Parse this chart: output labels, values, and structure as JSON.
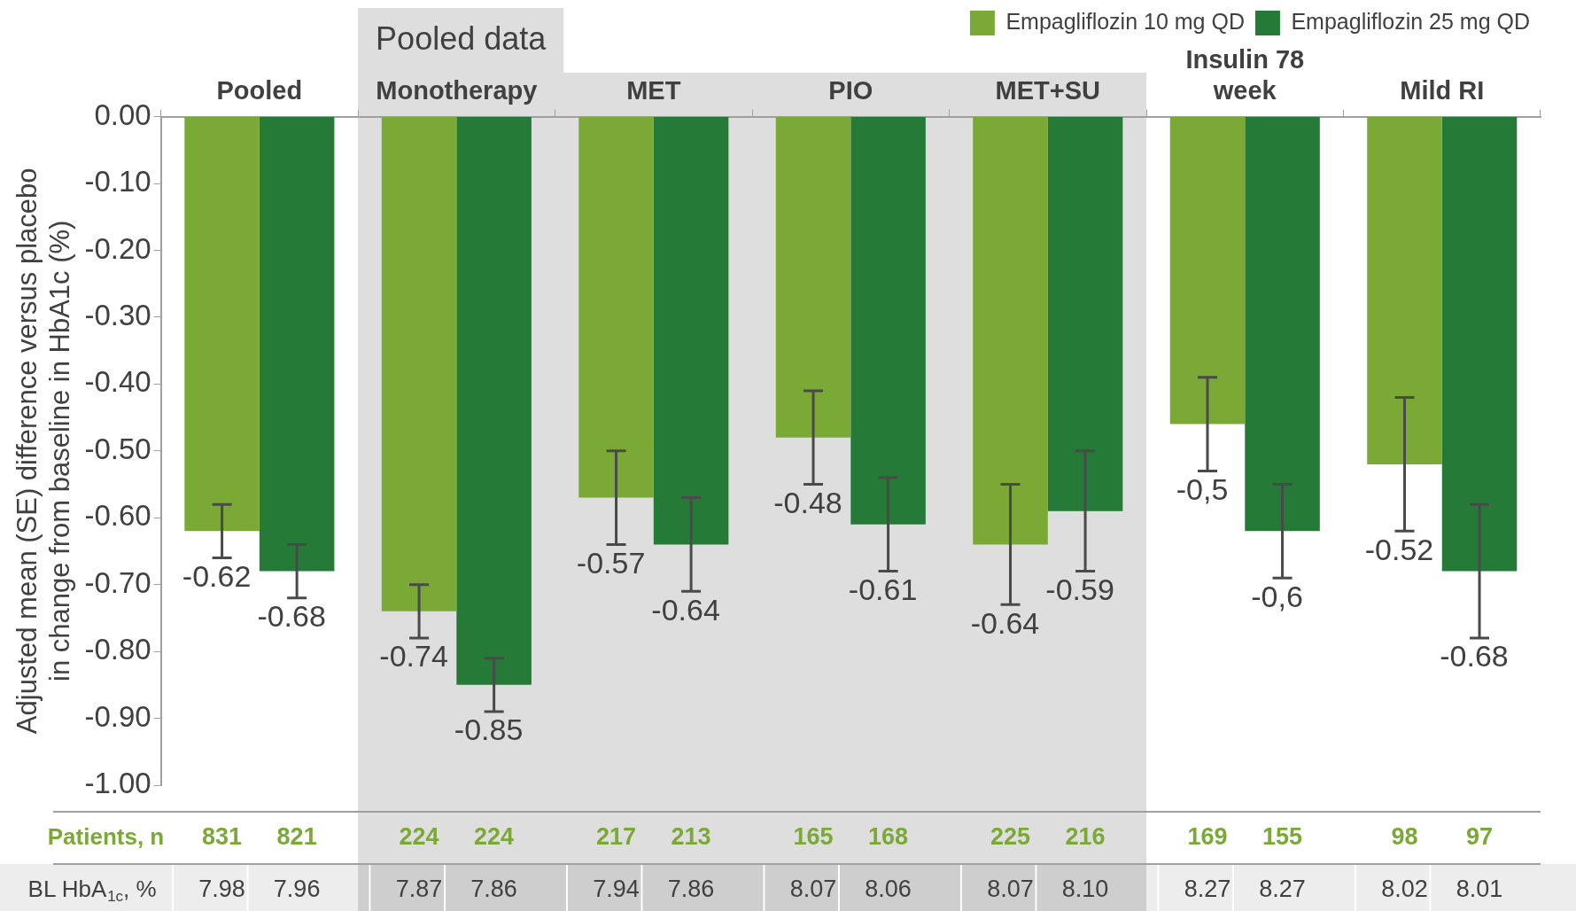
{
  "chart_data": {
    "type": "bar",
    "categories": [
      "Pooled",
      "Monotherapy",
      "MET",
      "PIO",
      "MET+SU",
      "Insulin 78 week",
      "Mild RI"
    ],
    "series": [
      {
        "name": "Empagliflozin 10 mg QD",
        "color": "#7aa936",
        "values": [
          -0.62,
          -0.74,
          -0.57,
          -0.48,
          -0.64,
          -0.46,
          -0.52
        ],
        "errors": [
          0.04,
          0.04,
          0.07,
          0.07,
          0.09,
          0.07,
          0.1
        ],
        "value_labels": [
          "-0.62",
          "-0.74",
          "-0.57",
          "-0.48",
          "-0.64",
          "-0,5",
          "-0.52"
        ]
      },
      {
        "name": "Empagliflozin 25 mg QD",
        "color": "#257a37",
        "values": [
          -0.68,
          -0.85,
          -0.64,
          -0.61,
          -0.59,
          -0.62,
          -0.68
        ],
        "errors": [
          0.04,
          0.04,
          0.07,
          0.07,
          0.09,
          0.07,
          0.1
        ],
        "value_labels": [
          "-0.68",
          "-0.85",
          "-0.64",
          "-0.61",
          "-0.59",
          "-0,6",
          "-0.68"
        ]
      }
    ],
    "ylim": [
      -1,
      0
    ],
    "yticks": [
      {
        "value": 0,
        "label": "0.00"
      },
      {
        "value": -0.1,
        "label": "-0.10"
      },
      {
        "value": -0.2,
        "label": "-0.20"
      },
      {
        "value": -0.3,
        "label": "-0.30"
      },
      {
        "value": -0.4,
        "label": "-0.40"
      },
      {
        "value": -0.5,
        "label": "-0.50"
      },
      {
        "value": -0.6,
        "label": "-0.60"
      },
      {
        "value": -0.7,
        "label": "-0.70"
      },
      {
        "value": -0.8,
        "label": "-0.80"
      },
      {
        "value": -0.9,
        "label": "-0.90"
      },
      {
        "value": -1,
        "label": "-1.00"
      }
    ],
    "ylabel": "Adjusted mean (SE) difference versus placebo in change from baseline in HbA1c (%)",
    "legend": "top right",
    "bands": [
      {
        "axis": "x",
        "from": "Monotherapy",
        "to": "MET+SU",
        "label": "Pooled data",
        "color": "#dedede"
      }
    ],
    "annotations": [
      "Patients, n",
      "831",
      "821",
      "224",
      "224",
      "217",
      "213",
      "165",
      "168",
      "225",
      "216",
      "169",
      "155",
      "98",
      "97",
      "BL HbA$_{1c}$, %",
      "7.98",
      "7.96",
      "7.87",
      "7.86",
      "7.94",
      "7.86",
      "8.07",
      "8.06",
      "8.07",
      "8.10",
      "8.27",
      "8.27",
      "8.02",
      "8.01"
    ]
  }
}
